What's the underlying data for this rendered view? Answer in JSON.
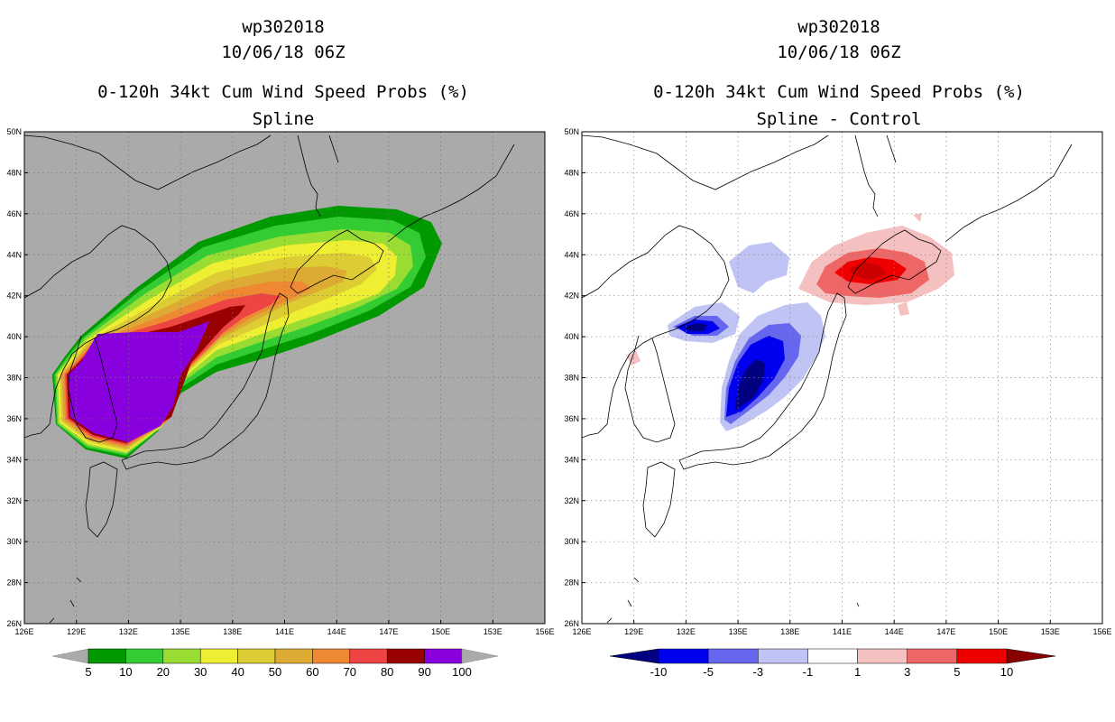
{
  "chart_data": [
    {
      "type": "heatmap",
      "storm_id": "wp302018",
      "datetime": "10/06/18 06Z",
      "title": "0-120h 34kt Cum Wind Speed Probs (%)",
      "subtitle": "Spline",
      "lon_range": [
        126,
        156
      ],
      "lat_range": [
        26,
        50
      ],
      "x_ticks": [
        "126E",
        "129E",
        "132E",
        "135E",
        "138E",
        "141E",
        "144E",
        "147E",
        "150E",
        "153E",
        "156E"
      ],
      "y_ticks": [
        "26N",
        "28N",
        "30N",
        "32N",
        "34N",
        "36N",
        "38N",
        "40N",
        "42N",
        "44N",
        "46N",
        "48N",
        "50N"
      ],
      "background_color": "#aaaaaa",
      "colorbar": {
        "levels": [
          "5",
          "10",
          "20",
          "30",
          "40",
          "50",
          "60",
          "70",
          "80",
          "90",
          "100"
        ],
        "colors": [
          "#009900",
          "#33cc33",
          "#99dd33",
          "#eeee33",
          "#ddcc33",
          "#ddaa33",
          "#ee8833",
          "#ee4444",
          "#990000",
          "#8800dd"
        ]
      },
      "shading": [
        {
          "level": 5,
          "color": "#009900"
        },
        {
          "level": 10,
          "color": "#33cc33"
        },
        {
          "level": 20,
          "color": "#99dd33"
        },
        {
          "level": 30,
          "color": "#eeee33"
        },
        {
          "level": 40,
          "color": "#ddcc33"
        },
        {
          "level": 50,
          "color": "#ddaa33"
        },
        {
          "level": 60,
          "color": "#ee8833"
        },
        {
          "level": 70,
          "color": "#ee4444"
        },
        {
          "level": 80,
          "color": "#990000"
        },
        {
          "level": 90,
          "color": "#8800dd"
        }
      ]
    },
    {
      "type": "heatmap",
      "storm_id": "wp302018",
      "datetime": "10/06/18 06Z",
      "title": "0-120h 34kt Cum Wind Speed Probs (%)",
      "subtitle": "Spline - Control",
      "lon_range": [
        126,
        156
      ],
      "lat_range": [
        26,
        50
      ],
      "x_ticks": [
        "126E",
        "129E",
        "132E",
        "135E",
        "138E",
        "141E",
        "144E",
        "147E",
        "150E",
        "153E",
        "156E"
      ],
      "y_ticks": [
        "26N",
        "28N",
        "30N",
        "32N",
        "34N",
        "36N",
        "38N",
        "40N",
        "42N",
        "44N",
        "46N",
        "48N",
        "50N"
      ],
      "background_color": "#ffffff",
      "colorbar": {
        "levels": [
          "-10",
          "-5",
          "-3",
          "-1",
          "1",
          "3",
          "5",
          "10"
        ],
        "colors": [
          "#000080",
          "#0000ee",
          "#6666ee",
          "#c0c4f4",
          "#ffffff",
          "#f4c0c0",
          "#ee6666",
          "#ee0000",
          "#880000"
        ]
      },
      "anomalies": [
        {
          "sign": "negative",
          "peak": "-10",
          "location": "Sea of Japan near 37N 136E"
        },
        {
          "sign": "positive",
          "peak": "10",
          "location": "Hokkaido near 43N 143E"
        }
      ]
    }
  ]
}
